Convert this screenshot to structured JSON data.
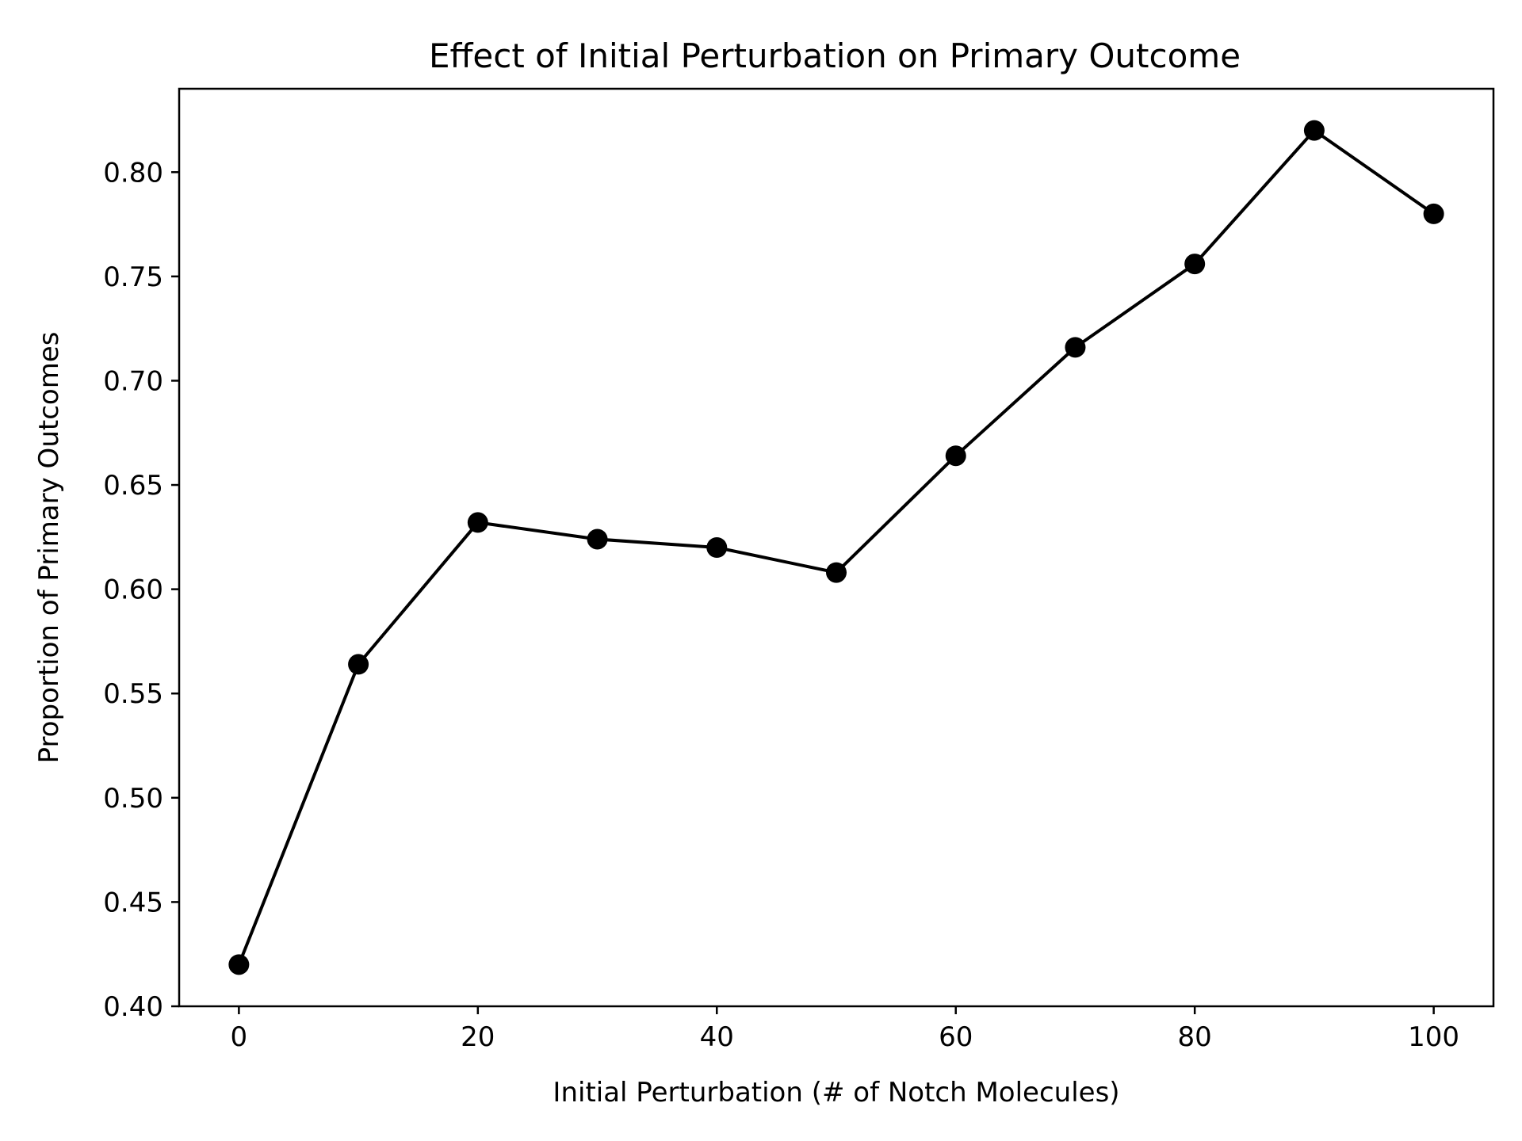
{
  "chart_data": {
    "type": "line",
    "title": "Effect of Initial Perturbation on Primary Outcome",
    "xlabel": "Initial Perturbation (# of Notch Molecules)",
    "ylabel": "Proportion of Primary Outcomes",
    "xlim": [
      -5,
      105
    ],
    "ylim": [
      0.4,
      0.84
    ],
    "x_ticks": [
      0,
      20,
      40,
      60,
      80,
      100
    ],
    "x_tick_labels": [
      "0",
      "20",
      "40",
      "60",
      "80",
      "100"
    ],
    "y_ticks": [
      0.4,
      0.45,
      0.5,
      0.55,
      0.6,
      0.65,
      0.7,
      0.75,
      0.8
    ],
    "y_tick_labels": [
      "0.40",
      "0.45",
      "0.50",
      "0.55",
      "0.60",
      "0.65",
      "0.70",
      "0.75",
      "0.80"
    ],
    "grid": false,
    "legend": "none",
    "series": [
      {
        "color": "#000000",
        "marker": "circle",
        "x": [
          0,
          10,
          20,
          30,
          40,
          50,
          60,
          70,
          80,
          90,
          100
        ],
        "y": [
          0.42,
          0.564,
          0.632,
          0.624,
          0.62,
          0.608,
          0.664,
          0.716,
          0.756,
          0.82,
          0.78
        ]
      }
    ]
  }
}
